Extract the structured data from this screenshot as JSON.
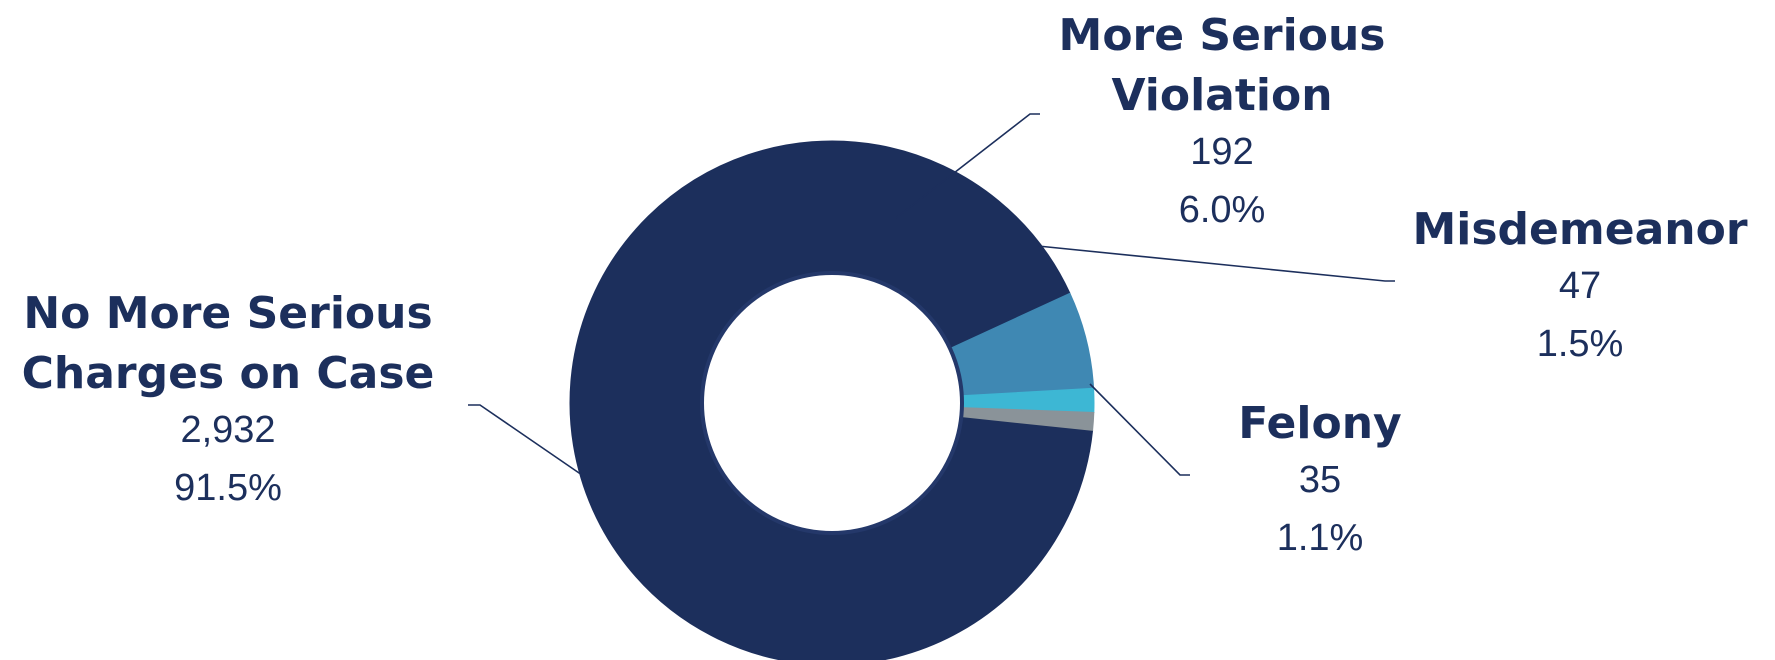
{
  "chart_data": {
    "type": "pie",
    "variant": "donut",
    "slices": [
      {
        "label_lines": [
          "No More Serious",
          "Charges on Case"
        ],
        "count": "2,932",
        "percent": "91.5%",
        "value": 2932,
        "color": "#1c2f5c"
      },
      {
        "label_lines": [
          "More Serious",
          "Violation"
        ],
        "count": "192",
        "percent": "6.0%",
        "value": 192,
        "color": "#3f88b3"
      },
      {
        "label_lines": [
          "Misdemeanor"
        ],
        "count": "47",
        "percent": "1.5%",
        "value": 47,
        "color": "#3db7d4"
      },
      {
        "label_lines": [
          "Felony"
        ],
        "count": "35",
        "percent": "1.1%",
        "value": 35,
        "color": "#8a9399"
      }
    ],
    "order_note": "slices listed in the clockwise drawing order starting from the boundary of the largest slice",
    "legend": "none (direct labels)",
    "label_color": "#1c2f5c"
  }
}
